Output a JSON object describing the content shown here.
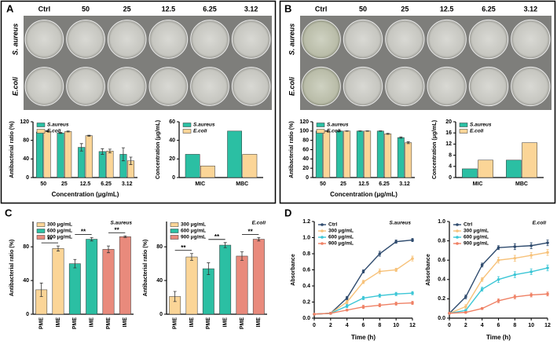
{
  "panel_labels": [
    "A",
    "B",
    "C",
    "D"
  ],
  "plates": [
    {
      "columns": [
        "Ctrl",
        "50",
        "25",
        "12.5",
        "6.25",
        "3.12"
      ],
      "rows": [
        "S. aureus",
        "E.coli"
      ]
    },
    {
      "columns": [
        "Ctrl",
        "50",
        "25",
        "12.5",
        "6.25",
        "3.12"
      ],
      "rows": [
        "S. aureus",
        "E.coli"
      ]
    }
  ],
  "chart_data": [
    {
      "type": "bar",
      "y_label": "Antibacterial ratio (%)",
      "x_label": "Concentration (μg/mL)",
      "legend": "upper left",
      "categories": [
        "50",
        "25",
        "12.5",
        "6.25",
        "3.12"
      ],
      "series": [
        {
          "name": "S.aureus",
          "color": "#2bbfa3",
          "values": [
            98,
            96,
            65,
            56,
            50
          ],
          "errors": [
            1,
            1,
            8,
            6,
            14
          ]
        },
        {
          "name": "E.coli",
          "color": "#fbd597",
          "values": [
            100,
            99,
            90,
            57,
            36
          ],
          "errors": [
            1,
            1,
            1,
            4,
            8
          ]
        }
      ],
      "ylim": [
        0,
        120
      ],
      "yticks": [
        0,
        40,
        80,
        120
      ]
    },
    {
      "type": "bar",
      "y_label": "Concentration (μg/mL)",
      "legend": "upper left",
      "categories": [
        "MIC",
        "MBC"
      ],
      "series": [
        {
          "name": "S.aureus",
          "color": "#2bbfa3",
          "values": [
            25,
            50
          ]
        },
        {
          "name": "E.coli",
          "color": "#fbd597",
          "values": [
            12.5,
            25
          ]
        }
      ],
      "ylim": [
        0,
        60
      ],
      "yticks": [
        0,
        20,
        40,
        60
      ]
    },
    {
      "type": "bar",
      "y_label": "Antibacterial ratio (%)",
      "x_label": "Concentration (μg/mL)",
      "legend": "upper left",
      "categories": [
        "50",
        "25",
        "12.5",
        "6.25",
        "3.12"
      ],
      "series": [
        {
          "name": "S.aureus",
          "color": "#2bbfa3",
          "values": [
            100,
            100,
            100,
            100,
            86
          ],
          "errors": [
            0.5,
            0.5,
            0.5,
            0.5,
            1.5
          ]
        },
        {
          "name": "E.coli",
          "color": "#fbd597",
          "values": [
            100,
            100,
            100,
            94,
            75
          ],
          "errors": [
            0.5,
            0.5,
            0.5,
            1,
            2
          ]
        }
      ],
      "ylim": [
        0,
        120
      ],
      "yticks": [
        0,
        20,
        40,
        60,
        80,
        100,
        120
      ]
    },
    {
      "type": "bar",
      "y_label": "Concentration (μg/mL)",
      "legend": "upper left",
      "categories": [
        "MIC",
        "MBC"
      ],
      "series": [
        {
          "name": "S.aureus",
          "color": "#2bbfa3",
          "values": [
            3.12,
            6.25
          ]
        },
        {
          "name": "E.coli",
          "color": "#fbd597",
          "values": [
            6.25,
            12.5
          ]
        }
      ],
      "ylim": [
        0,
        20
      ],
      "yticks": [
        0,
        4,
        8,
        12,
        16,
        20
      ]
    },
    {
      "type": "bar",
      "y_label": "Antibacterial ratio (%)",
      "annotation": "S.aureus",
      "legend": "upper left",
      "categories": [
        "PME",
        "IME",
        "PME",
        "IME",
        "PME",
        "IME"
      ],
      "series": [
        {
          "name": "300 μg/mL",
          "color": "#fbd597",
          "values": [
            29,
            78,
            null,
            null,
            null,
            null
          ],
          "errors": [
            8,
            3,
            null,
            null,
            null,
            null
          ]
        },
        {
          "name": "600 μg/mL",
          "color": "#2bbfa3",
          "values": [
            null,
            null,
            60,
            89,
            null,
            null
          ],
          "errors": [
            null,
            null,
            5,
            2,
            null,
            null
          ]
        },
        {
          "name": "900 μg/mL",
          "color": "#e98a7c",
          "values": [
            null,
            null,
            null,
            null,
            77,
            92
          ],
          "errors": [
            null,
            null,
            null,
            null,
            4,
            1
          ]
        }
      ],
      "significance": [
        "**",
        "**",
        "**"
      ],
      "ylim": [
        0,
        110
      ],
      "yticks": [
        0,
        40,
        80
      ]
    },
    {
      "type": "bar",
      "y_label": "Antibacterial ratio (%)",
      "annotation": "E.coli",
      "legend": "upper left",
      "categories": [
        "PME",
        "IME",
        "PME",
        "IME",
        "PME",
        "IME"
      ],
      "series": [
        {
          "name": "300 μg/mL",
          "color": "#fbd597",
          "values": [
            21,
            68,
            null,
            null,
            null,
            null
          ],
          "errors": [
            6,
            4,
            null,
            null,
            null,
            null
          ]
        },
        {
          "name": "600 μg/mL",
          "color": "#2bbfa3",
          "values": [
            null,
            null,
            54,
            82,
            null,
            null
          ],
          "errors": [
            null,
            null,
            7,
            3,
            null,
            null
          ]
        },
        {
          "name": "900 μg/mL",
          "color": "#e98a7c",
          "values": [
            null,
            null,
            null,
            null,
            69,
            89
          ],
          "errors": [
            null,
            null,
            null,
            null,
            5,
            2
          ]
        }
      ],
      "significance": [
        "**",
        "**",
        "**"
      ],
      "ylim": [
        0,
        110
      ],
      "yticks": [
        0,
        40,
        80
      ]
    },
    {
      "type": "line",
      "y_label": "Absorbance",
      "x_label": "Time (h)",
      "annotation": "S.aureus",
      "legend": "upper left",
      "x": [
        0,
        2,
        4,
        6,
        8,
        10,
        12
      ],
      "series": [
        {
          "name": "Ctrl",
          "color": "#2f4b6e",
          "values": [
            0.05,
            0.06,
            0.25,
            0.58,
            0.8,
            0.95,
            0.97
          ],
          "errors": [
            0.01,
            0.01,
            0.02,
            0.02,
            0.03,
            0.02,
            0.02
          ]
        },
        {
          "name": "300 μg/mL",
          "color": "#f7c27a",
          "values": [
            0.05,
            0.06,
            0.2,
            0.45,
            0.58,
            0.6,
            0.74
          ],
          "errors": [
            0.01,
            0.01,
            0.02,
            0.02,
            0.03,
            0.02,
            0.03
          ]
        },
        {
          "name": "600 μg/mL",
          "color": "#3cc6d6",
          "values": [
            0.05,
            0.06,
            0.15,
            0.25,
            0.28,
            0.3,
            0.31
          ],
          "errors": [
            0.01,
            0.01,
            0.02,
            0.02,
            0.02,
            0.02,
            0.02
          ]
        },
        {
          "name": "900 μg/mL",
          "color": "#ef8064",
          "values": [
            0.05,
            0.06,
            0.1,
            0.14,
            0.16,
            0.18,
            0.19
          ],
          "errors": [
            0.01,
            0.01,
            0.01,
            0.02,
            0.02,
            0.02,
            0.02
          ]
        }
      ],
      "xlim": [
        0,
        12
      ],
      "xticks": [
        0,
        2,
        4,
        6,
        8,
        10,
        12
      ],
      "ylim": [
        0,
        1.2
      ],
      "yticks": [
        {
          "value": 0,
          "label": "0.0"
        },
        0.2,
        0.4,
        0.6,
        0.8,
        {
          "value": 1,
          "label": "1.0"
        },
        1.2
      ]
    },
    {
      "type": "line",
      "y_label": "Absorbance",
      "x_label": "Time (h)",
      "annotation": "E.coli",
      "legend": "upper left",
      "x": [
        0,
        2,
        4,
        6,
        8,
        10,
        12
      ],
      "series": [
        {
          "name": "Ctrl",
          "color": "#2f4b6e",
          "values": [
            0.05,
            0.22,
            0.55,
            0.73,
            0.74,
            0.75,
            0.78
          ],
          "errors": [
            0.01,
            0.02,
            0.02,
            0.02,
            0.03,
            0.03,
            0.03
          ]
        },
        {
          "name": "300 μg/mL",
          "color": "#f7c27a",
          "values": [
            0.05,
            0.12,
            0.4,
            0.6,
            0.62,
            0.65,
            0.68
          ],
          "errors": [
            0.01,
            0.02,
            0.02,
            0.03,
            0.03,
            0.03,
            0.03
          ]
        },
        {
          "name": "600 μg/mL",
          "color": "#3cc6d6",
          "values": [
            0.05,
            0.08,
            0.3,
            0.4,
            0.45,
            0.48,
            0.52
          ],
          "errors": [
            0.01,
            0.01,
            0.02,
            0.03,
            0.03,
            0.03,
            0.03
          ]
        },
        {
          "name": "900 μg/mL",
          "color": "#ef8064",
          "values": [
            0.05,
            0.06,
            0.1,
            0.18,
            0.22,
            0.24,
            0.25
          ],
          "errors": [
            0.01,
            0.01,
            0.01,
            0.02,
            0.02,
            0.02,
            0.02
          ]
        }
      ],
      "xlim": [
        0,
        12
      ],
      "xticks": [
        0,
        2,
        4,
        6,
        8,
        10,
        12
      ],
      "ylim": [
        0,
        1
      ],
      "yticks": [
        {
          "value": 0,
          "label": "0.0"
        },
        0.2,
        0.4,
        0.6,
        0.8,
        {
          "value": 1,
          "label": "1.0"
        }
      ]
    }
  ]
}
